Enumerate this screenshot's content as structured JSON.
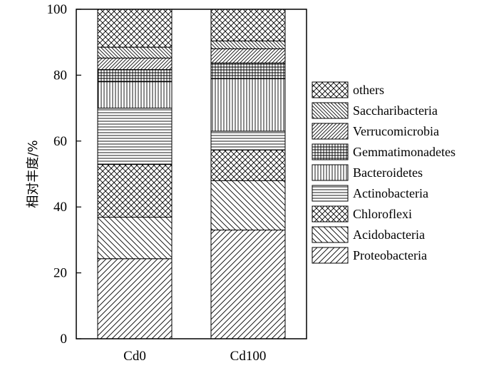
{
  "chart_data": {
    "type": "bar",
    "stacked": true,
    "categories": [
      "Cd0",
      "Cd100"
    ],
    "ylabel": "相对丰度/%",
    "xlabel": "",
    "ylim": [
      0,
      100
    ],
    "yticks": [
      0,
      20,
      40,
      60,
      80,
      100
    ],
    "legend_position": "right",
    "series": [
      {
        "name": "Proteobacteria",
        "values": [
          24.3,
          33.0
        ],
        "pattern": "diag-right"
      },
      {
        "name": "Acidobacteria",
        "values": [
          12.6,
          15.0
        ],
        "pattern": "diag-left"
      },
      {
        "name": "Chloroflexi",
        "values": [
          16.0,
          9.3
        ],
        "pattern": "crosshatch"
      },
      {
        "name": "Actinobacteria",
        "values": [
          17.1,
          5.7
        ],
        "pattern": "horizontal"
      },
      {
        "name": "Bacteroidetes",
        "values": [
          8.0,
          15.9
        ],
        "pattern": "vertical"
      },
      {
        "name": "Gemmatimonadetes",
        "values": [
          3.7,
          4.8
        ],
        "pattern": "grid"
      },
      {
        "name": "Verrucomicrobia",
        "values": [
          3.5,
          4.3
        ],
        "pattern": "diag-right-dense"
      },
      {
        "name": "Saccharibacteria",
        "values": [
          3.3,
          2.4
        ],
        "pattern": "diag-left-dense"
      },
      {
        "name": "others",
        "values": [
          11.5,
          9.6
        ],
        "pattern": "crosshatch"
      }
    ]
  }
}
